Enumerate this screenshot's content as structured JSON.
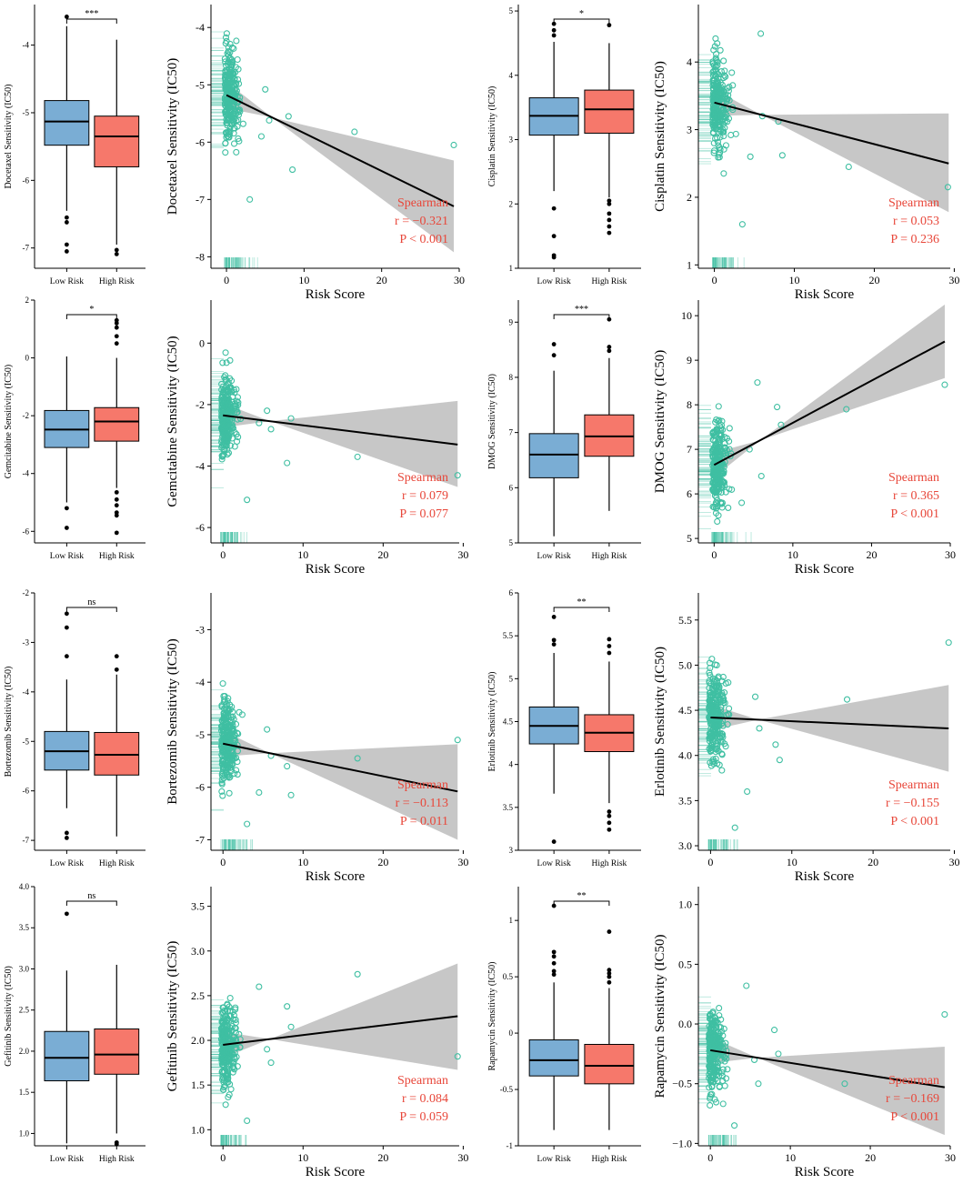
{
  "colors": {
    "low_fill": "#7aadd4",
    "high_fill": "#f6786b",
    "scatter": "#3fbfa2",
    "band": "#bdbdbd",
    "stat_text": "#e8473a",
    "axis": "#000000"
  },
  "chart_data": [
    {
      "type": "box",
      "drug": "Docetaxel",
      "ylabel": "Docetaxel Sensitivity (IC50)",
      "categories": [
        "Low Risk",
        "High Risk"
      ],
      "significance": "***",
      "yticks": [
        -7,
        -6,
        -5,
        -4
      ],
      "ylim": [
        -7.3,
        -3.4
      ],
      "boxes": [
        {
          "group": "Low Risk",
          "q1": -5.48,
          "median": -5.13,
          "q3": -4.82,
          "whisker_low": -6.45,
          "whisker_high": -3.72,
          "outliers": [
            -3.58,
            -6.55,
            -6.62,
            -6.95,
            -7.05
          ]
        },
        {
          "group": "High Risk",
          "q1": -5.8,
          "median": -5.35,
          "q3": -5.05,
          "whisker_low": -6.95,
          "whisker_high": -3.92,
          "outliers": [
            -7.03,
            -7.09
          ]
        }
      ]
    },
    {
      "type": "scatter",
      "drug": "Docetaxel",
      "ylabel": "Docetaxel Sensitivity (IC50)",
      "xlabel": "Risk Score",
      "xticks": [
        0,
        10,
        20,
        30
      ],
      "yticks": [
        -8,
        -7,
        -6,
        -5,
        -4
      ],
      "xlim": [
        -2,
        30
      ],
      "ylim": [
        -8.2,
        -3.6
      ],
      "fit": {
        "x0": 0,
        "y0": -5.18,
        "x1": 29.3,
        "y1": -7.12
      },
      "band": {
        "lo1": -7.92,
        "hi1": -6.32
      },
      "stats": {
        "method": "Spearman",
        "r": "r = −0.321",
        "p": "P < 0.001"
      },
      "points": [
        [
          5,
          -5.08
        ],
        [
          5.5,
          -5.62
        ],
        [
          8,
          -5.55
        ],
        [
          8.5,
          -6.48
        ],
        [
          16.5,
          -5.82
        ],
        [
          29.3,
          -6.05
        ],
        [
          4.5,
          -5.9
        ],
        [
          3,
          -7.0
        ]
      ]
    },
    {
      "type": "box",
      "drug": "Cisplatin",
      "ylabel": "Cisplatin Sensitivity (IC50)",
      "categories": [
        "Low Risk",
        "High Risk"
      ],
      "significance": "*",
      "yticks": [
        1,
        2,
        3,
        4,
        5
      ],
      "ylim": [
        1,
        5.1
      ],
      "boxes": [
        {
          "group": "Low Risk",
          "q1": 3.07,
          "median": 3.37,
          "q3": 3.65,
          "whisker_low": 2.2,
          "whisker_high": 4.52,
          "outliers": [
            4.62,
            4.7,
            4.8,
            1.93,
            1.5,
            1.2,
            1.17
          ]
        },
        {
          "group": "High Risk",
          "q1": 3.1,
          "median": 3.47,
          "q3": 3.77,
          "whisker_low": 2.1,
          "whisker_high": 4.5,
          "outliers": [
            4.78,
            2.05,
            2.0,
            1.85,
            1.75,
            1.65,
            1.55
          ]
        }
      ]
    },
    {
      "type": "scatter",
      "drug": "Cisplatin",
      "ylabel": "Cisplatin Sensitivity (IC50)",
      "xlabel": "Risk Score",
      "xticks": [
        0,
        10,
        20,
        30
      ],
      "yticks": [
        1,
        2,
        3,
        4
      ],
      "xlim": [
        -2,
        29.5
      ],
      "ylim": [
        0.95,
        4.85
      ],
      "fit": {
        "x0": 0,
        "y0": 3.4,
        "x1": 29.3,
        "y1": 2.5
      },
      "band": {
        "lo1": 1.78,
        "hi1": 3.24
      },
      "stats": {
        "method": "Spearman",
        "r": "r = 0.053",
        "p": "P = 0.236"
      },
      "points": [
        [
          5.8,
          4.42
        ],
        [
          6,
          3.2
        ],
        [
          8,
          3.12
        ],
        [
          8.5,
          2.62
        ],
        [
          16.8,
          2.45
        ],
        [
          29.2,
          2.15
        ],
        [
          4.5,
          2.6
        ],
        [
          3.5,
          1.6
        ]
      ]
    },
    {
      "type": "box",
      "drug": "Gemcitabine",
      "ylabel": "Gemcitabine Sensitivity (IC50)",
      "categories": [
        "Low Risk",
        "High Risk"
      ],
      "significance": "*",
      "yticks": [
        -6,
        -4,
        -2,
        0,
        2
      ],
      "ylim": [
        -6.4,
        2
      ],
      "boxes": [
        {
          "group": "Low Risk",
          "q1": -3.1,
          "median": -2.48,
          "q3": -1.82,
          "whisker_low": -5.0,
          "whisker_high": 0.05,
          "outliers": [
            -5.2,
            -5.88
          ]
        },
        {
          "group": "High Risk",
          "q1": -2.88,
          "median": -2.2,
          "q3": -1.72,
          "whisker_low": -4.5,
          "whisker_high": 0.0,
          "outliers": [
            0.5,
            0.75,
            1.05,
            1.2,
            1.3,
            -4.65,
            -4.9,
            -5.1,
            -5.35,
            -5.45,
            -6.05
          ]
        }
      ]
    },
    {
      "type": "scatter",
      "drug": "Gemcitabine",
      "ylabel": "Gemcitabine Sensitivity (IC50)",
      "xlabel": "Risk Score",
      "xticks": [
        0,
        10,
        20,
        30
      ],
      "yticks": [
        -6,
        -4,
        -2,
        0
      ],
      "xlim": [
        -1.5,
        29.5
      ],
      "ylim": [
        -6.5,
        1.4
      ],
      "fit": {
        "x0": 0,
        "y0": -2.35,
        "x1": 29.3,
        "y1": -3.3
      },
      "band": {
        "lo1": -4.68,
        "hi1": -1.88
      },
      "stats": {
        "method": "Spearman",
        "r": "r = 0.079",
        "p": "P = 0.077"
      },
      "points": [
        [
          5.5,
          -2.2
        ],
        [
          6,
          -2.8
        ],
        [
          8,
          -3.9
        ],
        [
          8.5,
          -2.45
        ],
        [
          16.8,
          -3.7
        ],
        [
          29.3,
          -4.3
        ],
        [
          4.5,
          -2.6
        ],
        [
          3,
          -5.1
        ]
      ]
    },
    {
      "type": "box",
      "drug": "DMOG",
      "ylabel": "DMOG Sensitivity (IC50)",
      "categories": [
        "Low Risk",
        "High Risk"
      ],
      "significance": "***",
      "yticks": [
        5,
        6,
        7,
        8,
        9
      ],
      "ylim": [
        5,
        9.4
      ],
      "boxes": [
        {
          "group": "Low Risk",
          "q1": 6.18,
          "median": 6.6,
          "q3": 6.98,
          "whisker_low": 5.12,
          "whisker_high": 8.12,
          "outliers": [
            8.4,
            8.6
          ]
        },
        {
          "group": "High Risk",
          "q1": 6.57,
          "median": 6.93,
          "q3": 7.32,
          "whisker_low": 5.58,
          "whisker_high": 8.35,
          "outliers": [
            8.48,
            8.55,
            9.05
          ]
        }
      ]
    },
    {
      "type": "scatter",
      "drug": "DMOG",
      "ylabel": "DMOG Sensitivity (IC50)",
      "xlabel": "Risk Score",
      "xticks": [
        0,
        10,
        20,
        30
      ],
      "yticks": [
        5,
        6,
        7,
        8,
        9,
        10
      ],
      "xlim": [
        -2,
        30
      ],
      "ylim": [
        4.9,
        10.35
      ],
      "fit": {
        "x0": 0,
        "y0": 6.65,
        "x1": 29.3,
        "y1": 9.42
      },
      "band": {
        "lo1": 8.6,
        "hi1": 10.25
      },
      "stats": {
        "method": "Spearman",
        "r": "r = 0.365",
        "p": "P < 0.001"
      },
      "points": [
        [
          5.5,
          8.5
        ],
        [
          6,
          6.4
        ],
        [
          8,
          7.95
        ],
        [
          8.5,
          7.55
        ],
        [
          16.8,
          7.9
        ],
        [
          29.3,
          8.45
        ],
        [
          4.5,
          7.0
        ],
        [
          3.5,
          5.8
        ]
      ]
    },
    {
      "type": "box",
      "drug": "Bortezomib",
      "ylabel": "Bortezomib Sensitivity (IC50)",
      "categories": [
        "Low Risk",
        "High Risk"
      ],
      "significance": "ns",
      "yticks": [
        -7,
        -6,
        -5,
        -4,
        -3,
        -2
      ],
      "ylim": [
        -7.2,
        -2
      ],
      "boxes": [
        {
          "group": "Low Risk",
          "q1": -5.58,
          "median": -5.2,
          "q3": -4.8,
          "whisker_low": -6.35,
          "whisker_high": -3.75,
          "outliers": [
            -2.42,
            -2.7,
            -3.28,
            -6.85,
            -6.95
          ]
        },
        {
          "group": "High Risk",
          "q1": -5.68,
          "median": -5.27,
          "q3": -4.82,
          "whisker_low": -6.92,
          "whisker_high": -3.65,
          "outliers": [
            -3.28,
            -3.55
          ]
        }
      ]
    },
    {
      "type": "scatter",
      "drug": "Bortezomib",
      "ylabel": "Bortezomib Sensitivity (IC50)",
      "xlabel": "Risk Score",
      "xticks": [
        0,
        10,
        20,
        30
      ],
      "yticks": [
        -7,
        -6,
        -5,
        -4,
        -3
      ],
      "xlim": [
        -1.5,
        29.5
      ],
      "ylim": [
        -7.2,
        -2.3
      ],
      "fit": {
        "x0": 0,
        "y0": -5.17,
        "x1": 29.3,
        "y1": -6.08
      },
      "band": {
        "lo1": -7.0,
        "hi1": -5.18
      },
      "stats": {
        "method": "Spearman",
        "r": "r = −0.113",
        "p": "P = 0.011"
      },
      "points": [
        [
          5.5,
          -4.9
        ],
        [
          6,
          -5.4
        ],
        [
          8,
          -5.6
        ],
        [
          8.5,
          -6.15
        ],
        [
          16.8,
          -5.45
        ],
        [
          29.3,
          -5.1
        ],
        [
          4.5,
          -6.1
        ],
        [
          3,
          -6.7
        ]
      ]
    },
    {
      "type": "box",
      "drug": "Erlotinib",
      "ylabel": "Erlotinib Sensitivity (IC50)",
      "categories": [
        "Low Risk",
        "High Risk"
      ],
      "significance": "**",
      "yticks": [
        3.0,
        3.5,
        4.0,
        4.5,
        5.0,
        5.5,
        6.0
      ],
      "ylim": [
        3,
        6
      ],
      "boxes": [
        {
          "group": "Low Risk",
          "q1": 4.24,
          "median": 4.45,
          "q3": 4.67,
          "whisker_low": 3.66,
          "whisker_high": 5.3,
          "outliers": [
            5.4,
            5.45,
            5.72,
            3.1
          ]
        },
        {
          "group": "High Risk",
          "q1": 4.15,
          "median": 4.37,
          "q3": 4.58,
          "whisker_low": 3.55,
          "whisker_high": 5.2,
          "outliers": [
            5.3,
            5.38,
            5.46,
            3.45,
            3.4,
            3.32,
            3.24
          ]
        }
      ]
    },
    {
      "type": "scatter",
      "drug": "Erlotinib",
      "ylabel": "Erlotinib Sensitivity (IC50)",
      "xlabel": "Risk Score",
      "xticks": [
        0,
        10,
        20,
        30
      ],
      "yticks": [
        "3.0",
        "3.5",
        "4.0",
        "4.5",
        "5.0",
        "5.5"
      ],
      "xlim": [
        -1.5,
        29.5
      ],
      "ylim": [
        2.95,
        5.8
      ],
      "fit": {
        "x0": 0,
        "y0": 4.42,
        "x1": 29.3,
        "y1": 4.3
      },
      "band": {
        "lo1": 3.82,
        "hi1": 4.78
      },
      "stats": {
        "method": "Spearman",
        "r": "r = −0.155",
        "p": "P < 0.001"
      },
      "points": [
        [
          5.5,
          4.65
        ],
        [
          6,
          4.3
        ],
        [
          8,
          4.12
        ],
        [
          8.5,
          3.95
        ],
        [
          16.8,
          4.62
        ],
        [
          29.3,
          5.25
        ],
        [
          4.5,
          3.6
        ],
        [
          3,
          3.2
        ]
      ]
    },
    {
      "type": "box",
      "drug": "Gefitinib",
      "ylabel": "Gefitinib Sensitivity (IC50)",
      "categories": [
        "Low Risk",
        "High Risk"
      ],
      "significance": "ns",
      "yticks": [
        "1.0",
        "1.5",
        "2.0",
        "2.5",
        "3.0",
        "3.5",
        "4.0"
      ],
      "ylim": [
        0.85,
        4
      ],
      "boxes": [
        {
          "group": "Low Risk",
          "q1": 1.64,
          "median": 1.92,
          "q3": 2.24,
          "whisker_low": 0.88,
          "whisker_high": 2.98,
          "outliers": [
            3.67
          ]
        },
        {
          "group": "High Risk",
          "q1": 1.72,
          "median": 1.96,
          "q3": 2.27,
          "whisker_low": 1.0,
          "whisker_high": 3.05,
          "outliers": [
            0.87,
            0.89
          ]
        }
      ]
    },
    {
      "type": "scatter",
      "drug": "Gefitinib",
      "ylabel": "Gefitinib Sensitivity (IC50)",
      "xlabel": "Risk Score",
      "xticks": [
        0,
        10,
        20,
        30
      ],
      "yticks": [
        "1.0",
        "1.5",
        "2.0",
        "2.5",
        "3.0",
        "3.5"
      ],
      "xlim": [
        -1.5,
        29.5
      ],
      "ylim": [
        0.82,
        3.72
      ],
      "fit": {
        "x0": 0,
        "y0": 1.95,
        "x1": 29.3,
        "y1": 2.27
      },
      "band": {
        "lo1": 1.67,
        "hi1": 2.86
      },
      "stats": {
        "method": "Spearman",
        "r": "r = 0.084",
        "p": "P = 0.059"
      },
      "points": [
        [
          5.5,
          1.9
        ],
        [
          6,
          1.75
        ],
        [
          8,
          2.38
        ],
        [
          8.5,
          2.15
        ],
        [
          16.8,
          2.74
        ],
        [
          29.3,
          1.82
        ],
        [
          4.5,
          2.6
        ],
        [
          3,
          1.1
        ]
      ]
    },
    {
      "type": "box",
      "drug": "Rapamycin",
      "ylabel": "Rapamycin Sensitivity (IC50)",
      "categories": [
        "Low Risk",
        "High Risk"
      ],
      "significance": "**",
      "yticks": [
        -1.0,
        -0.5,
        0.0,
        0.5,
        1.0
      ],
      "ylim": [
        -1.0,
        1.3
      ],
      "boxes": [
        {
          "group": "Low Risk",
          "q1": -0.38,
          "median": -0.24,
          "q3": -0.06,
          "whisker_low": -0.86,
          "whisker_high": 0.45,
          "outliers": [
            0.52,
            0.55,
            0.62,
            0.68,
            0.72,
            1.13
          ]
        },
        {
          "group": "High Risk",
          "q1": -0.45,
          "median": -0.29,
          "q3": -0.1,
          "whisker_low": -0.86,
          "whisker_high": 0.4,
          "outliers": [
            0.45,
            0.5,
            0.53,
            0.56,
            0.9
          ]
        }
      ]
    },
    {
      "type": "scatter",
      "drug": "Rapamycin",
      "ylabel": "Rapamycin Sensitivity (IC50)",
      "xlabel": "Risk Score",
      "xticks": [
        0,
        10,
        20,
        30
      ],
      "yticks": [
        "−1.0",
        "−0.5",
        "0.0",
        "0.5",
        "1.0"
      ],
      "xlim": [
        -1.5,
        30
      ],
      "ylim": [
        -1.02,
        1.15
      ],
      "fit": {
        "x0": 0,
        "y0": -0.22,
        "x1": 29.3,
        "y1": -0.53
      },
      "band": {
        "lo1": -0.93,
        "hi1": -0.19
      },
      "stats": {
        "method": "Spearman",
        "r": "r = −0.169",
        "p": "P < 0.001"
      },
      "points": [
        [
          5.5,
          -0.3
        ],
        [
          6,
          -0.5
        ],
        [
          8,
          -0.05
        ],
        [
          8.5,
          -0.25
        ],
        [
          16.8,
          -0.5
        ],
        [
          29.3,
          0.08
        ],
        [
          4.5,
          0.32
        ],
        [
          3,
          -0.85
        ]
      ]
    }
  ]
}
